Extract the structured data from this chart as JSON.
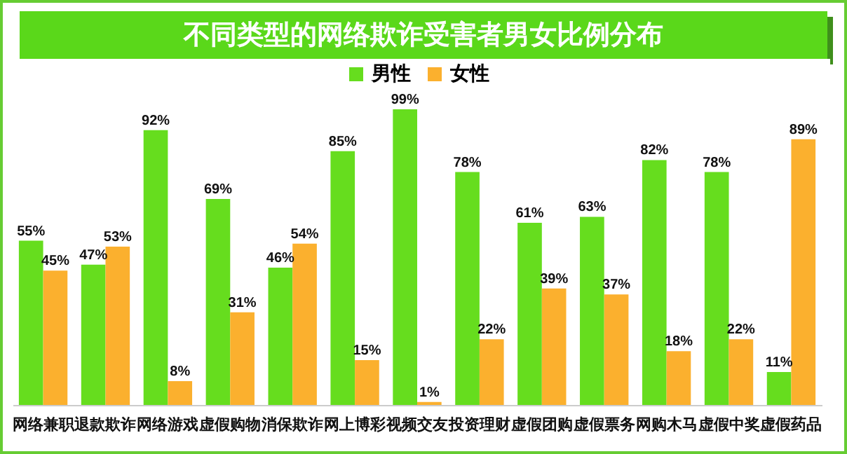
{
  "chart_data": {
    "type": "bar",
    "title": "不同类型的网络欺诈受害者男女比例分布",
    "categories": [
      "网络兼职",
      "退款欺诈",
      "网络游戏",
      "虚假购物",
      "消保欺诈",
      "网上博彩",
      "视频交友",
      "投资理财",
      "虚假团购",
      "虚假票务",
      "网购木马",
      "虚假中奖",
      "虚假药品"
    ],
    "series": [
      {
        "name": "男性",
        "color": "#66dd1e",
        "values": [
          55,
          47,
          92,
          69,
          46,
          85,
          99,
          78,
          61,
          63,
          82,
          78,
          11
        ],
        "value_labels": [
          "55%",
          "47%",
          "92%",
          "69%",
          "46%",
          "85%",
          "99%",
          "78%",
          "61%",
          "63%",
          "82%",
          "78%",
          "11%"
        ]
      },
      {
        "name": "女性",
        "color": "#fbb02e",
        "values": [
          45,
          53,
          8,
          31,
          54,
          15,
          1,
          22,
          39,
          37,
          18,
          22,
          89
        ],
        "value_labels": [
          "45%",
          "53%",
          "8%",
          "31%",
          "54%",
          "15%",
          "1%",
          "22%",
          "39%",
          "37%",
          "18%",
          "22%",
          "89%"
        ]
      }
    ],
    "legend": "top",
    "grid": false
  }
}
